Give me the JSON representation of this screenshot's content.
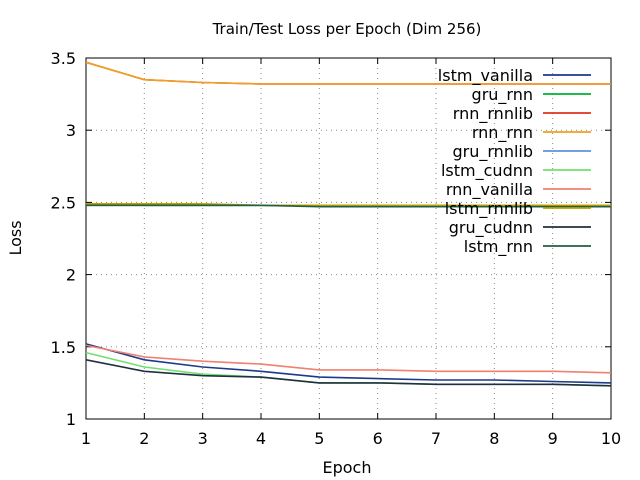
{
  "chart_data": {
    "type": "line",
    "title": "Train/Test Loss per Epoch (Dim 256)",
    "xlabel": "Epoch",
    "ylabel": "Loss",
    "xlim": [
      1,
      10
    ],
    "ylim": [
      1,
      3.5
    ],
    "xticks": [
      "1",
      "2",
      "3",
      "4",
      "5",
      "6",
      "7",
      "8",
      "9",
      "10"
    ],
    "yticks": [
      "1",
      "1.5",
      "2",
      "2.5",
      "3",
      "3.5"
    ],
    "x": [
      1,
      2,
      3,
      4,
      5,
      6,
      7,
      8,
      9,
      10
    ],
    "grid": true,
    "legend_position": "top-right",
    "series": [
      {
        "name": "lstm_vanilla",
        "color": "#1a3a8a",
        "values": [
          1.52,
          1.41,
          1.36,
          1.33,
          1.29,
          1.28,
          1.27,
          1.27,
          1.26,
          1.25
        ]
      },
      {
        "name": "gru_rnn",
        "color": "#00b030",
        "values": [
          2.49,
          2.48,
          2.48,
          2.48,
          2.48,
          2.48,
          2.48,
          2.48,
          2.48,
          2.48
        ]
      },
      {
        "name": "rnn_rnnlib",
        "color": "#e03020",
        "values": [
          3.47,
          3.35,
          3.33,
          3.32,
          3.32,
          3.32,
          3.32,
          3.32,
          3.32,
          3.32
        ]
      },
      {
        "name": "rnn_rnn",
        "color": "#f0a020",
        "values": [
          3.47,
          3.35,
          3.33,
          3.32,
          3.32,
          3.32,
          3.32,
          3.32,
          3.32,
          3.32
        ]
      },
      {
        "name": "gru_rnnlib",
        "color": "#6090e0",
        "values": [
          2.48,
          2.48,
          2.48,
          2.48,
          2.48,
          2.48,
          2.48,
          2.48,
          2.48,
          2.48
        ]
      },
      {
        "name": "lstm_cudnn",
        "color": "#70e070",
        "values": [
          1.46,
          1.36,
          1.31,
          1.29,
          1.25,
          1.25,
          1.24,
          1.24,
          1.24,
          1.23
        ]
      },
      {
        "name": "rnn_vanilla",
        "color": "#f08070",
        "values": [
          1.51,
          1.43,
          1.4,
          1.38,
          1.34,
          1.34,
          1.33,
          1.33,
          1.33,
          1.32
        ]
      },
      {
        "name": "lstm_rnnlib",
        "color": "#c0a000",
        "values": [
          2.49,
          2.49,
          2.49,
          2.48,
          2.48,
          2.48,
          2.48,
          2.48,
          2.48,
          2.48
        ]
      },
      {
        "name": "gru_cudnn",
        "color": "#203040",
        "values": [
          1.41,
          1.33,
          1.3,
          1.29,
          1.25,
          1.25,
          1.24,
          1.24,
          1.24,
          1.23
        ]
      },
      {
        "name": "lstm_rnn",
        "color": "#206040",
        "values": [
          2.48,
          2.48,
          2.48,
          2.48,
          2.47,
          2.47,
          2.47,
          2.47,
          2.47,
          2.47
        ]
      }
    ]
  }
}
